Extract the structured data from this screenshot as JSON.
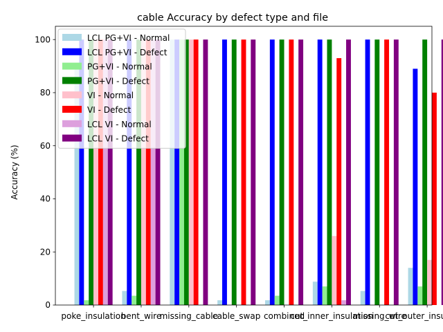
{
  "chart_data": {
    "type": "bar",
    "title": "cable Accuracy by defect type and file",
    "xlabel": "",
    "ylabel": "Accuracy (%)",
    "ylim": [
      0,
      105
    ],
    "yticks": [
      0,
      20,
      40,
      60,
      80,
      100
    ],
    "grid": false,
    "legend_position": "top-left",
    "categories": [
      "poke_insulation",
      "bent_wire",
      "missing_cable",
      "cable_swap",
      "combined",
      "cut_inner_insulation",
      "missing_wire",
      "cut_outer_insulation"
    ],
    "series": [
      {
        "name": "LCL PG+VI - Normal",
        "color": "#add8e6",
        "values": [
          91,
          5.3,
          100,
          1.8,
          1.8,
          8.8,
          5.3,
          14
        ]
      },
      {
        "name": "LCL PG+VI - Defect",
        "color": "#0000ff",
        "values": [
          100,
          100,
          100,
          100,
          100,
          100,
          100,
          89
        ]
      },
      {
        "name": "PG+VI - Normal",
        "color": "#90ee90",
        "values": [
          1.8,
          3.5,
          100,
          0,
          3.5,
          7,
          0,
          7
        ]
      },
      {
        "name": "PG+VI - Defect",
        "color": "#008000",
        "values": [
          100,
          100,
          100,
          100,
          100,
          100,
          100,
          100
        ]
      },
      {
        "name": "VI - Normal",
        "color": "#ffc0cb",
        "values": [
          100,
          100,
          100,
          0,
          0,
          26,
          0,
          17
        ]
      },
      {
        "name": "VI - Defect",
        "color": "#ff0000",
        "values": [
          100,
          100,
          100,
          100,
          100,
          93,
          100,
          80
        ]
      },
      {
        "name": "LCL VI - Normal",
        "color": "#dda0dd",
        "values": [
          100,
          100,
          0,
          0,
          0,
          1.8,
          0,
          0
        ]
      },
      {
        "name": "LCL VI - Defect",
        "color": "#800080",
        "values": [
          100,
          100,
          100,
          100,
          100,
          100,
          100,
          100
        ]
      }
    ]
  }
}
